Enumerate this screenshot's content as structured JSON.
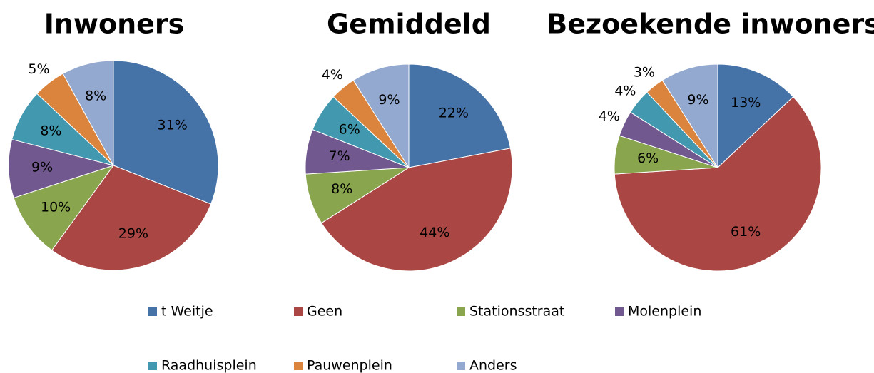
{
  "chart_data": [
    {
      "type": "pie",
      "title": "Inwoners",
      "values": [
        31,
        29,
        10,
        9,
        8,
        5,
        8
      ],
      "value_labels": [
        "31%",
        "29%",
        "10%",
        "9%",
        "8%",
        "5%",
        "8%"
      ]
    },
    {
      "type": "pie",
      "title": "Gemiddeld",
      "values": [
        22,
        44,
        8,
        7,
        6,
        4,
        9
      ],
      "value_labels": [
        "22%",
        "44%",
        "8%",
        "7%",
        "6%",
        "4%",
        "9%"
      ]
    },
    {
      "type": "pie",
      "title": "Bezoekende inwoners",
      "values": [
        13,
        61,
        6,
        4,
        4,
        3,
        9
      ],
      "value_labels": [
        "13%",
        "61%",
        "6%",
        "4%",
        "4%",
        "3%",
        "9%"
      ]
    }
  ],
  "legend": {
    "categories": [
      "t Weitje",
      "Geen",
      "Stationsstraat",
      "Molenplein",
      "Raadhuisplein",
      "Pauwenplein",
      "Anders"
    ],
    "colors": [
      "#4572a7",
      "#aa4643",
      "#89a54e",
      "#71588f",
      "#4198af",
      "#db843d",
      "#93a9cf"
    ]
  }
}
